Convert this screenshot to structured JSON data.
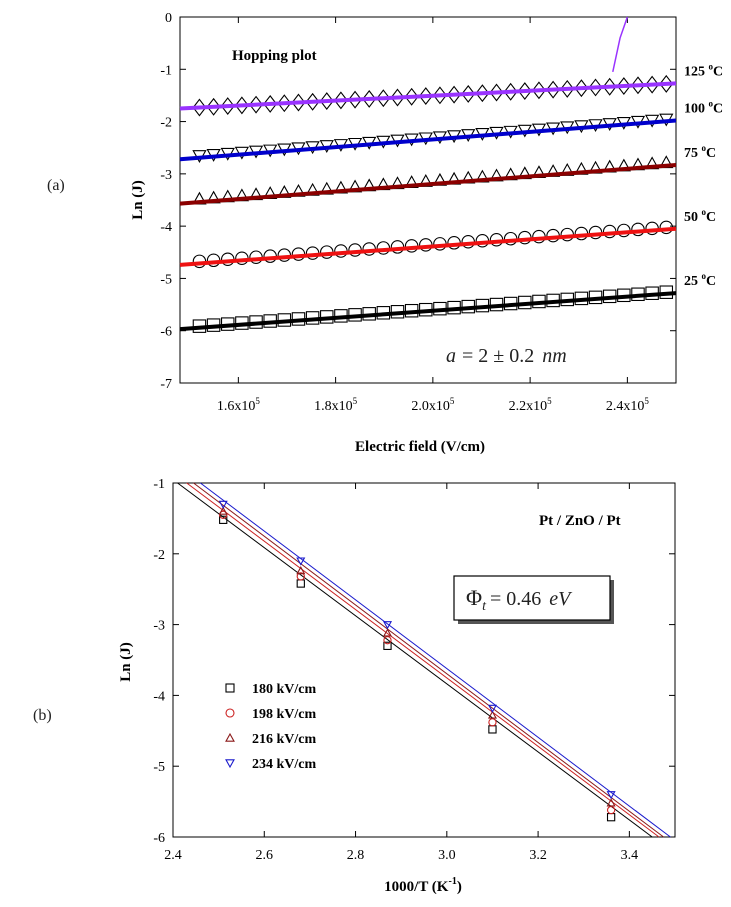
{
  "chart_data": [
    {
      "type": "scatter",
      "panel_label": "(a)",
      "title": "",
      "xlabel": "Electric field (V/cm)",
      "ylabel": "Ln (J)",
      "xlim": [
        148000,
        250000
      ],
      "ylim": [
        -7,
        0
      ],
      "x_ticks": [
        {
          "value": 160000,
          "mantissa": "1.6x10",
          "exp": "5"
        },
        {
          "value": 180000,
          "mantissa": "1.8x10",
          "exp": "5"
        },
        {
          "value": 200000,
          "mantissa": "2.0x10",
          "exp": "5"
        },
        {
          "value": 220000,
          "mantissa": "2.2x10",
          "exp": "5"
        },
        {
          "value": 240000,
          "mantissa": "2.4x10",
          "exp": "5"
        }
      ],
      "y_ticks": [
        0,
        -1,
        -2,
        -3,
        -4,
        -5,
        -6,
        -7
      ],
      "annotation_text": "Hopping plot",
      "hop_label": {
        "lhs": "a",
        "rhs": "= 2 ± 0.2",
        "unit": "nm"
      },
      "marker_x_range": [
        152000,
        248000
      ],
      "marker_count": 34,
      "series": [
        {
          "name": "125 °C",
          "label_number": "125",
          "label_unit": "C",
          "marker": "diamond",
          "color": "#9933ff",
          "fit_start": -1.75,
          "fit_end": -1.27,
          "marker_offset": 0,
          "excursion": {
            "x": [
              237000,
              238500,
              240000
            ],
            "y": [
              -1.05,
              -0.4,
              0
            ]
          }
        },
        {
          "name": "100 °C",
          "label_number": "100",
          "label_unit": "C",
          "marker": "triangle-down",
          "color": "#0000cc",
          "fit_start": -2.72,
          "fit_end": -1.98,
          "marker_offset": 0.04
        },
        {
          "name": "75 °C",
          "label_number": "75",
          "label_unit": "C",
          "marker": "triangle-up",
          "color": "#8b0000",
          "fit_start": -3.57,
          "fit_end": -2.83,
          "marker_offset": 0.06
        },
        {
          "name": "50 °C",
          "label_number": "50",
          "label_unit": "C",
          "marker": "circle",
          "color": "#ee1111",
          "fit_start": -4.74,
          "fit_end": -4.05,
          "marker_offset": 0.04
        },
        {
          "name": "25 °C",
          "label_number": "25",
          "label_unit": "C",
          "marker": "square",
          "color": "#000000",
          "fit_start": -5.97,
          "fit_end": -5.28,
          "marker_offset": 0.03
        }
      ]
    },
    {
      "type": "scatter",
      "panel_label": "(b)",
      "title": "",
      "xlabel": "1000/T (K",
      "xlabel_sup": "-1",
      "xlabel_end": ")",
      "ylabel": "Ln (J)",
      "xlim": [
        2.4,
        3.5
      ],
      "ylim": [
        -6,
        -1
      ],
      "x_ticks": [
        "2.4",
        "2.6",
        "2.8",
        "3.0",
        "3.2",
        "3.4"
      ],
      "y_ticks": [
        -1,
        -2,
        -3,
        -4,
        -5,
        -6
      ],
      "annotation_text": "Pt / ZnO / Pt",
      "phi_label": {
        "symbol": "Φ",
        "sub": "t",
        "rhs": "= 0.46",
        "unit": "eV"
      },
      "x": [
        2.51,
        2.68,
        2.87,
        3.1,
        3.36
      ],
      "series": [
        {
          "name": "180 kV/cm",
          "marker": "square",
          "color": "#000000",
          "y": [
            -1.52,
            -2.42,
            -3.3,
            -4.48,
            -5.72
          ],
          "fit": {
            "x": [
              2.41,
              3.45
            ],
            "y": [
              -1.0,
              -6.0
            ]
          }
        },
        {
          "name": "198 kV/cm",
          "marker": "circle",
          "color": "#cc2222",
          "y": [
            -1.45,
            -2.32,
            -3.22,
            -4.38,
            -5.62
          ],
          "fit": {
            "x": [
              2.43,
              3.465
            ],
            "y": [
              -1.0,
              -6.0
            ]
          }
        },
        {
          "name": "216 kV/cm",
          "marker": "triangle-up",
          "color": "#8b1a1a",
          "y": [
            -1.4,
            -2.24,
            -3.12,
            -4.28,
            -5.52
          ],
          "fit": {
            "x": [
              2.445,
              3.475
            ],
            "y": [
              -1.0,
              -6.0
            ]
          }
        },
        {
          "name": "234 kV/cm",
          "marker": "triangle-down",
          "color": "#1a1acc",
          "y": [
            -1.3,
            -2.1,
            -3.0,
            -4.18,
            -5.4
          ],
          "fit": {
            "x": [
              2.46,
              3.49
            ],
            "y": [
              -1.0,
              -6.0
            ]
          }
        }
      ]
    }
  ]
}
